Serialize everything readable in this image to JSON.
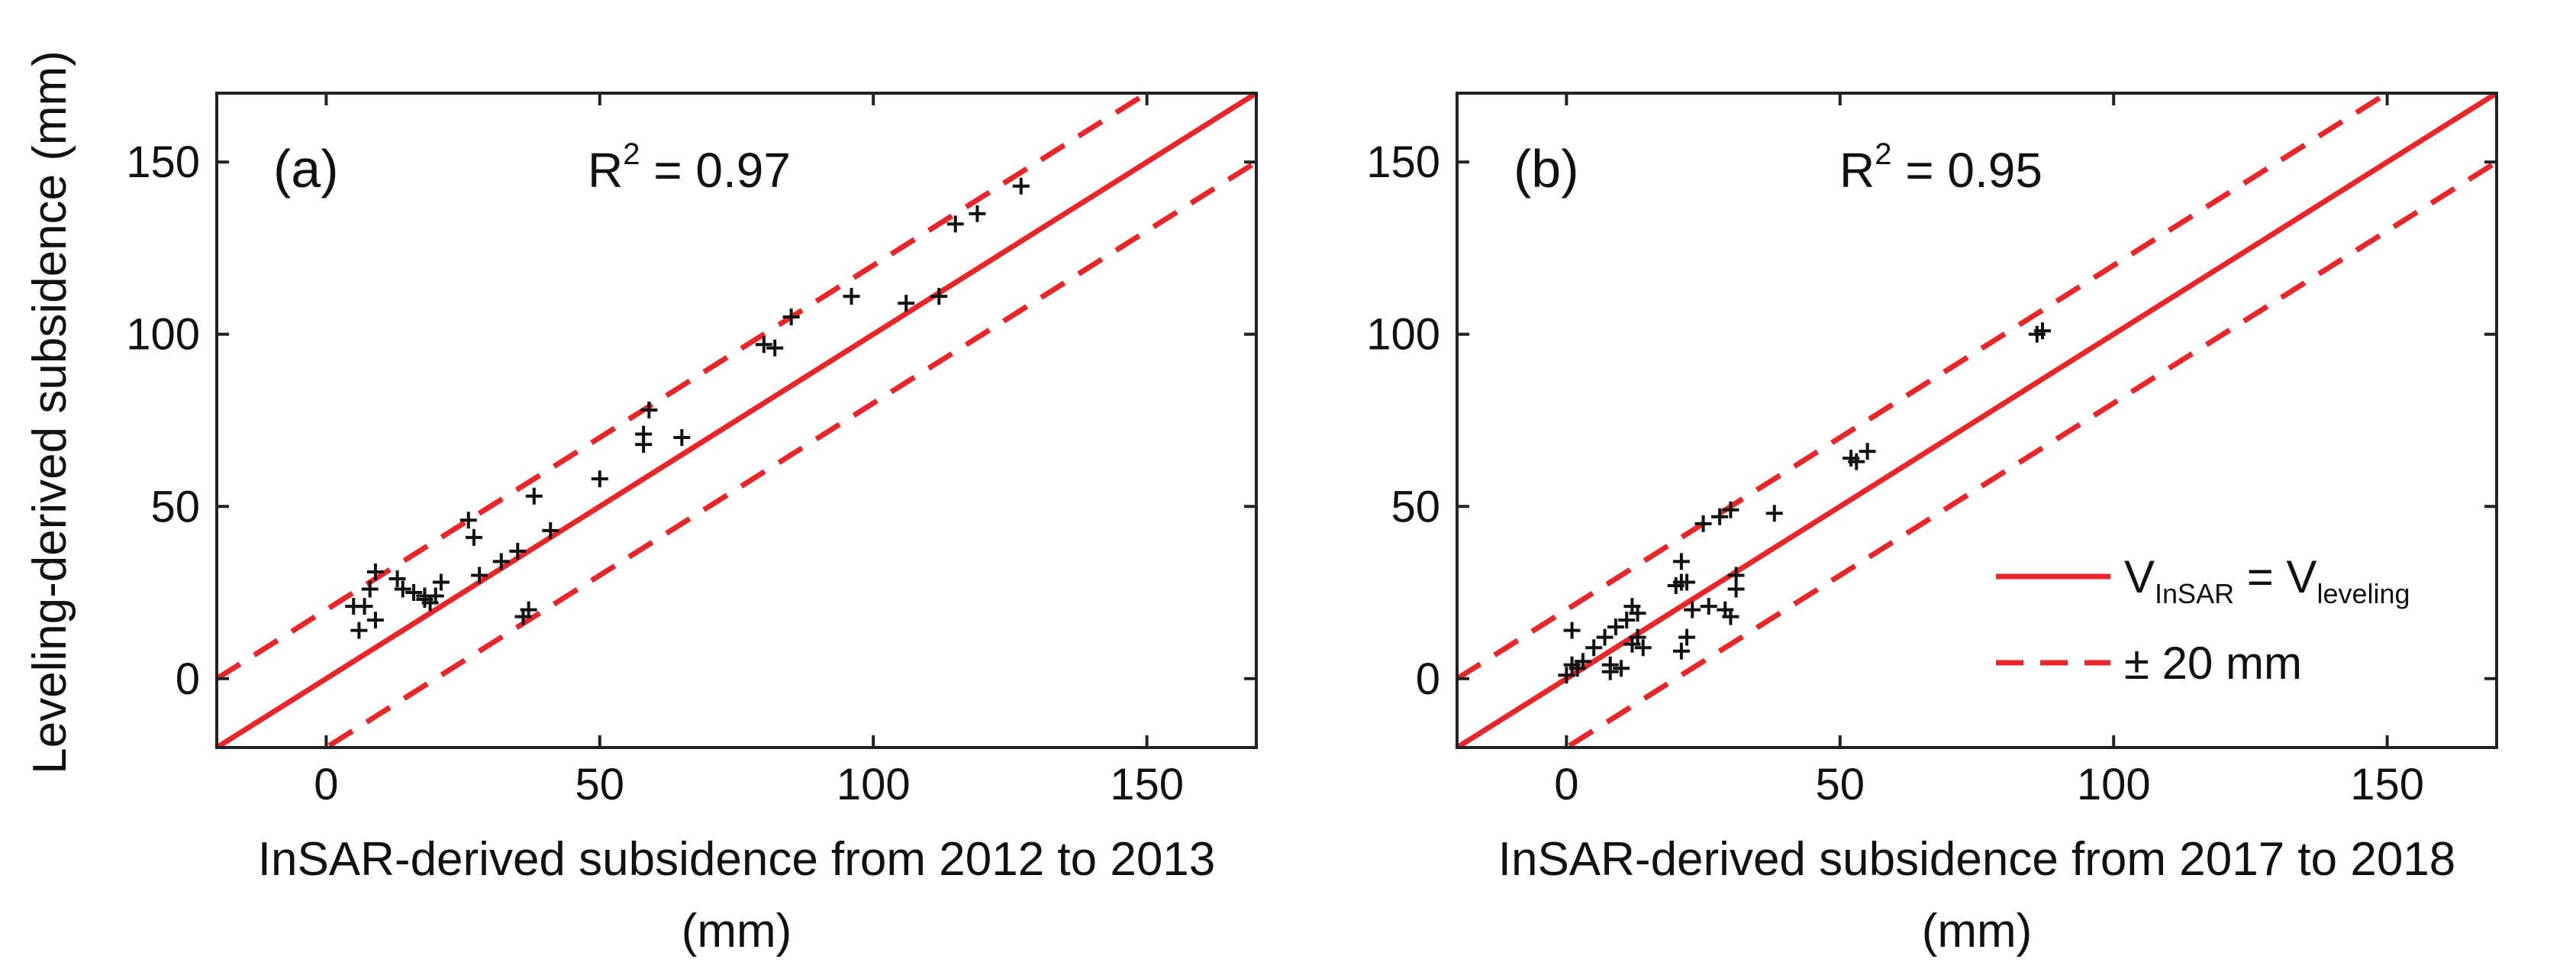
{
  "figure": {
    "ylabel": "Leveling-derived subsidence (mm)",
    "line_color": "#e8262a",
    "point_color": "#111111"
  },
  "legend": {
    "solid_lhs_main": "V",
    "solid_lhs_sub": "InSAR",
    "solid_eq": " = ",
    "solid_rhs_main": "V",
    "solid_rhs_sub": "leveling",
    "dashed_label": "± 20 mm"
  },
  "chart_data": [
    {
      "type": "scatter",
      "panel": "(a)",
      "r2_prefix": "R",
      "r2_sup": "2",
      "r2_value": " = 0.97",
      "xlabel_line1": "InSAR-derived subsidence from 2012 to 2013",
      "xlabel_line2": "(mm)",
      "ylabel": "Leveling-derived subsidence (mm)",
      "xlim": [
        -20,
        170
      ],
      "ylim": [
        -20,
        170
      ],
      "xticks": [
        0,
        50,
        100,
        150
      ],
      "yticks": [
        0,
        50,
        100,
        150
      ],
      "reference_lines": [
        {
          "name": "V_InSAR = V_leveling",
          "offset": 0,
          "style": "solid"
        },
        {
          "name": "+20 mm",
          "offset": 20,
          "style": "dashed"
        },
        {
          "name": "-20 mm",
          "offset": -20,
          "style": "dashed"
        }
      ],
      "x": [
        5,
        7,
        6,
        8,
        9,
        9,
        13,
        14,
        16,
        18,
        18,
        19,
        20,
        21,
        26,
        27,
        28,
        32,
        35,
        37,
        36,
        38,
        41,
        50,
        58,
        58,
        59,
        65,
        80,
        82,
        85,
        96,
        106,
        112,
        115,
        119,
        127
      ],
      "y": [
        21,
        21,
        14,
        26,
        17,
        31,
        29,
        26,
        25,
        23,
        24,
        22,
        24,
        28,
        46,
        41,
        30,
        34,
        37,
        20,
        18,
        53,
        43,
        58,
        68,
        71,
        78,
        70,
        97,
        96,
        105,
        111,
        109,
        111,
        132,
        135,
        143
      ]
    },
    {
      "type": "scatter",
      "panel": "(b)",
      "r2_prefix": "R",
      "r2_sup": "2",
      "r2_value": " = 0.95",
      "xlabel_line1": "InSAR-derived subsidence  from 2017 to 2018",
      "xlabel_line2": "(mm)",
      "ylabel": "",
      "xlim": [
        -20,
        170
      ],
      "ylim": [
        -20,
        170
      ],
      "xticks": [
        0,
        50,
        100,
        150
      ],
      "yticks": [
        0,
        50,
        100,
        150
      ],
      "reference_lines": [
        {
          "name": "V_InSAR = V_leveling",
          "offset": 0,
          "style": "solid"
        },
        {
          "name": "+20 mm",
          "offset": 20,
          "style": "dashed"
        },
        {
          "name": "-20 mm",
          "offset": -20,
          "style": "dashed"
        }
      ],
      "x": [
        0,
        1,
        1,
        2,
        3,
        5,
        7,
        8,
        8,
        9,
        10,
        11,
        12,
        12,
        13,
        13,
        14,
        20,
        21,
        21,
        21,
        22,
        22,
        23,
        25,
        26,
        28,
        29,
        30,
        30,
        31,
        31,
        38,
        52,
        53,
        55,
        86,
        87
      ],
      "y": [
        1,
        14,
        4,
        3,
        5,
        9,
        12,
        2,
        4,
        15,
        3,
        17,
        21,
        10,
        12,
        19,
        9,
        27,
        34,
        28,
        8,
        12,
        28,
        20,
        45,
        21,
        47,
        20,
        49,
        18,
        26,
        30,
        48,
        64,
        63,
        66,
        100,
        101
      ]
    }
  ]
}
